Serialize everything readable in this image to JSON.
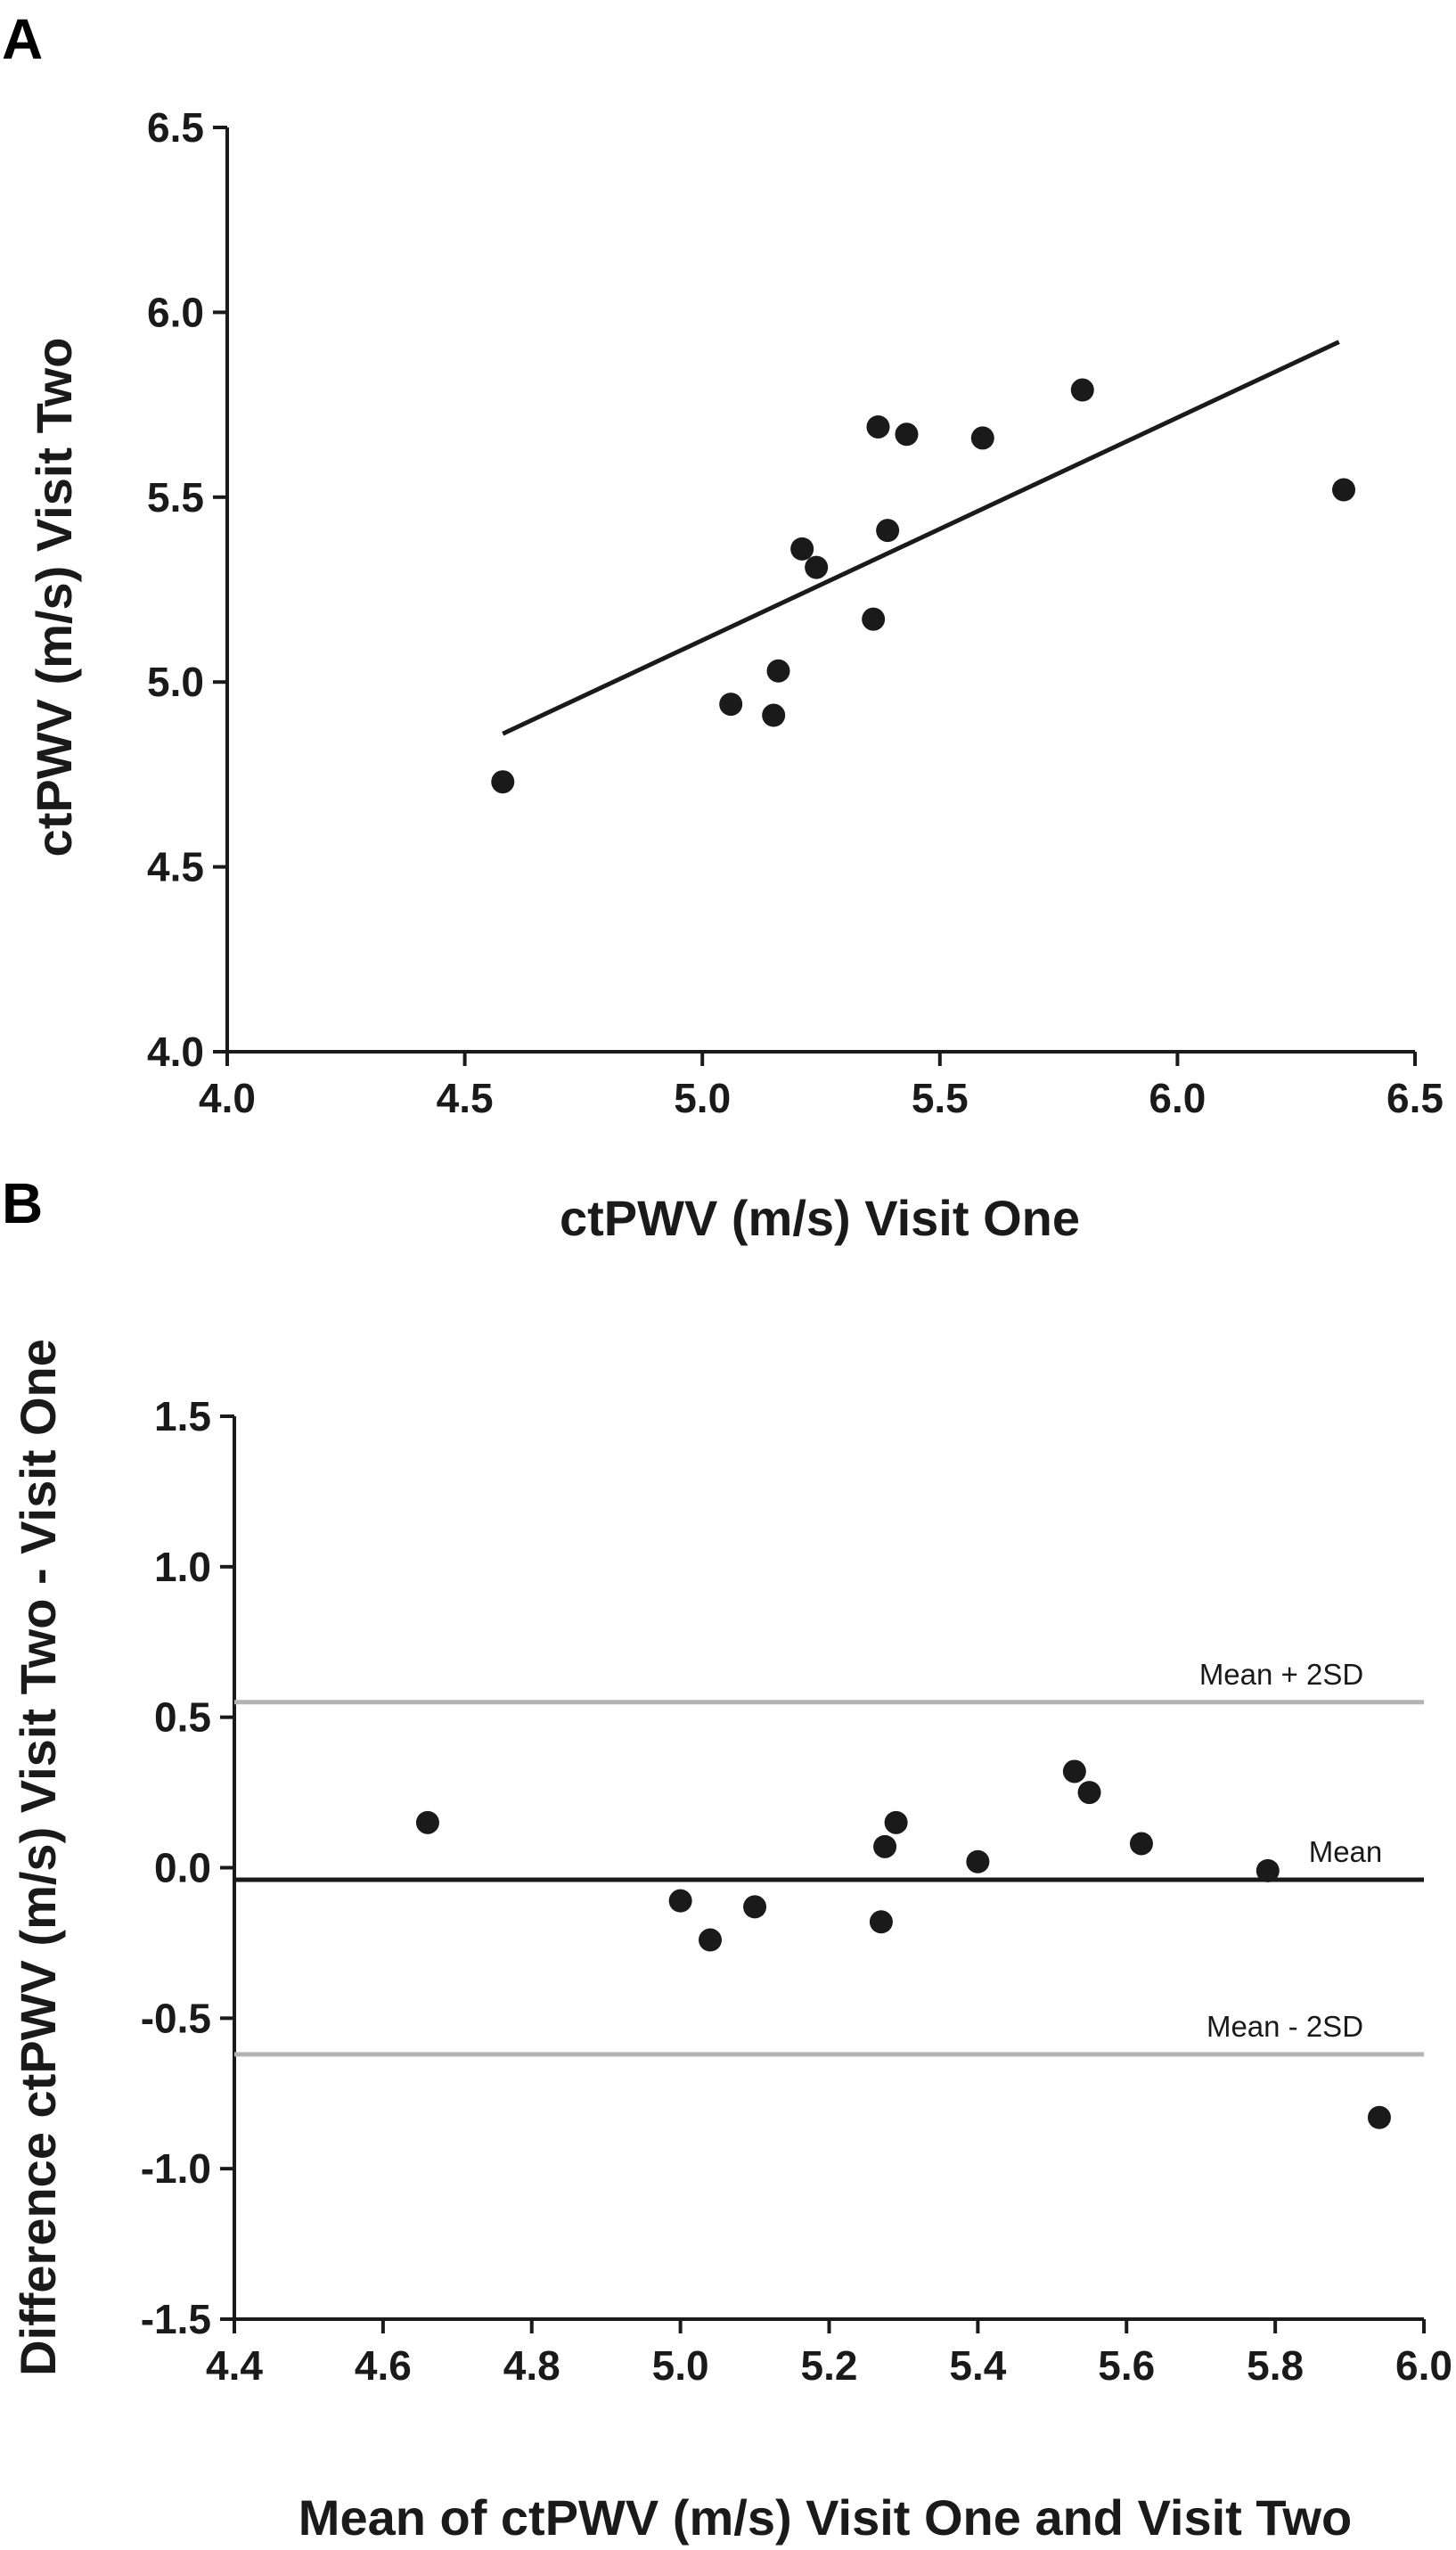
{
  "chart_data": [
    {
      "type": "scatter",
      "panel_label": "A",
      "xlabel": "ctPWV (m/s) Visit One",
      "ylabel": "ctPWV (m/s) Visit Two",
      "xlim": [
        4.0,
        6.5
      ],
      "ylim": [
        4.0,
        6.5
      ],
      "xticks": [
        "4.0",
        "4.5",
        "5.0",
        "5.5",
        "6.0",
        "6.5"
      ],
      "yticks": [
        "4.0",
        "4.5",
        "5.0",
        "5.5",
        "6.0",
        "6.5"
      ],
      "points": [
        {
          "x": 4.58,
          "y": 4.73
        },
        {
          "x": 5.06,
          "y": 4.94
        },
        {
          "x": 5.16,
          "y": 5.03
        },
        {
          "x": 5.15,
          "y": 4.91
        },
        {
          "x": 5.21,
          "y": 5.36
        },
        {
          "x": 5.24,
          "y": 5.31
        },
        {
          "x": 5.36,
          "y": 5.17
        },
        {
          "x": 5.37,
          "y": 5.69
        },
        {
          "x": 5.39,
          "y": 5.41
        },
        {
          "x": 5.43,
          "y": 5.67
        },
        {
          "x": 5.59,
          "y": 5.66
        },
        {
          "x": 5.8,
          "y": 5.79
        },
        {
          "x": 6.35,
          "y": 5.52
        }
      ],
      "regression_line": {
        "x": [
          4.58,
          6.34
        ],
        "y": [
          4.86,
          5.92
        ]
      },
      "grid": false
    },
    {
      "type": "scatter",
      "panel_label": "B",
      "xlabel": "Mean of ctPWV (m/s) Visit One and Visit Two",
      "ylabel": "Difference ctPWV (m/s) Visit Two - Visit One",
      "xlim": [
        4.4,
        6.0
      ],
      "ylim": [
        -1.5,
        1.5
      ],
      "xticks": [
        "4.4",
        "4.6",
        "4.8",
        "5.0",
        "5.2",
        "5.4",
        "5.6",
        "5.8",
        "6.0"
      ],
      "yticks": [
        "-1.5",
        "-1.0",
        "-0.5",
        "0.0",
        "0.5",
        "1.0",
        "1.5"
      ],
      "points": [
        {
          "x": 4.66,
          "y": 0.15
        },
        {
          "x": 5.0,
          "y": -0.11
        },
        {
          "x": 5.04,
          "y": -0.24
        },
        {
          "x": 5.1,
          "y": -0.13
        },
        {
          "x": 5.27,
          "y": -0.18
        },
        {
          "x": 5.275,
          "y": 0.07
        },
        {
          "x": 5.29,
          "y": 0.15
        },
        {
          "x": 5.4,
          "y": 0.02
        },
        {
          "x": 5.53,
          "y": 0.32
        },
        {
          "x": 5.55,
          "y": 0.25
        },
        {
          "x": 5.62,
          "y": 0.08
        },
        {
          "x": 5.79,
          "y": -0.01
        },
        {
          "x": 5.94,
          "y": -0.83
        }
      ],
      "reference_lines": [
        {
          "label": "Mean + 2SD",
          "y": 0.55,
          "color": "#b3b3b3"
        },
        {
          "label": "Mean",
          "y": -0.04,
          "color": "#1a1a1a"
        },
        {
          "label": "Mean - 2SD",
          "y": -0.62,
          "color": "#b3b3b3"
        }
      ],
      "grid": false
    }
  ]
}
